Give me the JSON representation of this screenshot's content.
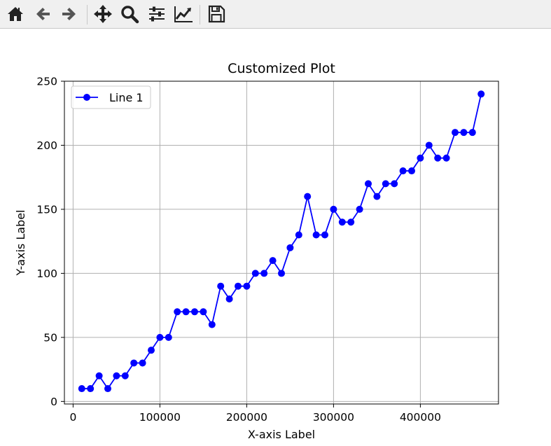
{
  "toolbar": {
    "buttons": [
      {
        "name": "home-button",
        "icon": "home-icon"
      },
      {
        "name": "back-button",
        "icon": "arrow-left-icon"
      },
      {
        "name": "forward-button",
        "icon": "arrow-right-icon"
      },
      {
        "name": "pan-button",
        "icon": "move-icon"
      },
      {
        "name": "zoom-button",
        "icon": "magnifier-icon"
      },
      {
        "name": "configure-subplots-button",
        "icon": "sliders-icon"
      },
      {
        "name": "edit-axes-button",
        "icon": "line-chart-icon"
      },
      {
        "name": "save-button",
        "icon": "floppy-disk-icon"
      }
    ]
  },
  "chart_data": {
    "type": "line",
    "title": "Customized Plot",
    "xlabel": "X-axis Label",
    "ylabel": "Y-axis Label",
    "xlim": [
      -10000,
      490000
    ],
    "ylim": [
      -2,
      250
    ],
    "xticks": [
      0,
      100000,
      200000,
      300000,
      400000
    ],
    "xtick_labels": [
      "0",
      "100000",
      "200000",
      "300000",
      "400000"
    ],
    "yticks": [
      0,
      50,
      100,
      150,
      200,
      250
    ],
    "ytick_labels": [
      "0",
      "50",
      "100",
      "150",
      "200",
      "250"
    ],
    "grid": true,
    "legend": "upper-left",
    "series": [
      {
        "name": "Line 1",
        "color": "#0000ff",
        "marker": "circle",
        "x": [
          10000,
          20000,
          30000,
          40000,
          50000,
          60000,
          70000,
          80000,
          90000,
          100000,
          110000,
          120000,
          130000,
          140000,
          150000,
          160000,
          170000,
          180000,
          190000,
          200000,
          210000,
          220000,
          230000,
          240000,
          250000,
          260000,
          270000,
          280000,
          290000,
          300000,
          310000,
          320000,
          330000,
          340000,
          350000,
          360000,
          370000,
          380000,
          390000,
          400000,
          410000,
          420000,
          430000,
          440000,
          450000,
          460000,
          470000
        ],
        "y": [
          10,
          10,
          20,
          10,
          20,
          20,
          30,
          30,
          40,
          50,
          50,
          70,
          70,
          70,
          70,
          60,
          90,
          80,
          90,
          90,
          100,
          100,
          110,
          100,
          120,
          130,
          160,
          130,
          130,
          150,
          140,
          140,
          150,
          170,
          160,
          170,
          170,
          180,
          180,
          190,
          200,
          190,
          190,
          210,
          210,
          210,
          240
        ]
      }
    ]
  }
}
